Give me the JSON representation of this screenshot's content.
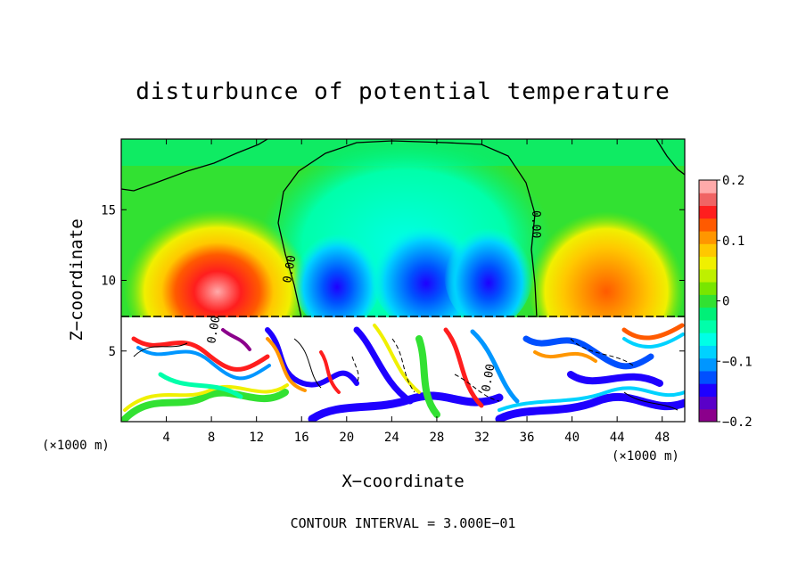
{
  "chart_data": {
    "type": "heatmap",
    "title": "disturbunce of potential temperature",
    "xlabel": "X−coordinate",
    "ylabel": "Z−coordinate",
    "x_unit": "(×1000 m)",
    "z_unit": "(×1000 m)",
    "xlim": [
      0,
      50
    ],
    "ylim": [
      0,
      20
    ],
    "x_ticks": [
      4,
      8,
      12,
      16,
      20,
      24,
      28,
      32,
      36,
      40,
      44,
      48
    ],
    "x_tick_labels": [
      "4",
      "8",
      "12",
      "16",
      "20",
      "24",
      "28",
      "32",
      "36",
      "40",
      "44",
      "48"
    ],
    "y_ticks": [
      5,
      10,
      15
    ],
    "y_tick_labels": [
      "5",
      "10",
      "15"
    ],
    "colorbar": {
      "range": [
        -0.2,
        0.2
      ],
      "ticks": [
        0.2,
        0.1,
        0,
        -0.1,
        -0.2
      ],
      "tick_labels": [
        "0.2",
        "0.1",
        "0",
        "−0.1",
        "−0.2"
      ],
      "colors": [
        "#8B008B",
        "#5A00C8",
        "#1E00FF",
        "#0050FF",
        "#0096FF",
        "#00D2FF",
        "#00FFE6",
        "#00FFAA",
        "#00F078",
        "#32E132",
        "#78E600",
        "#BEF000",
        "#F0F000",
        "#FFC800",
        "#FF9600",
        "#FF5A00",
        "#FF1E1E",
        "#F06464",
        "#FFAAAA"
      ]
    },
    "contour_labels": [
      "0.00",
      "0.00",
      "0.00",
      "0.00"
    ],
    "annotation": "CONTOUR INTERVAL = 3.000E−01",
    "fields": {
      "upper_layer": {
        "z_range": [
          7.3,
          20
        ],
        "background_value": -0.02
      },
      "warm_anomalies": [
        {
          "x": 9,
          "z": 10,
          "value": 0.17
        },
        {
          "x": 43,
          "z": 10,
          "value": 0.12
        }
      ],
      "cold_anomalies": [
        {
          "x": 19,
          "z": 10.5,
          "value": -0.15
        },
        {
          "x": 27,
          "z": 10.5,
          "value": -0.14
        },
        {
          "x": 33,
          "z": 10.5,
          "value": -0.14
        }
      ],
      "lower_layer": {
        "z_range": [
          0,
          7.3
        ],
        "pattern": "turbulent"
      }
    }
  }
}
